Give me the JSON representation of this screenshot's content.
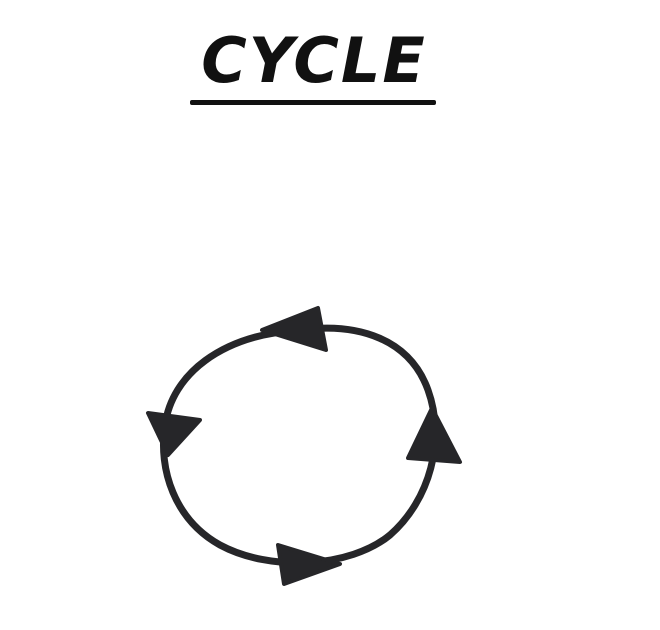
{
  "title": "CYCLE",
  "colors": {
    "ink": "#262629",
    "background": "#ffffff"
  },
  "diagram": {
    "shape": "circle",
    "direction": "counterclockwise",
    "arrow_count": 4
  }
}
